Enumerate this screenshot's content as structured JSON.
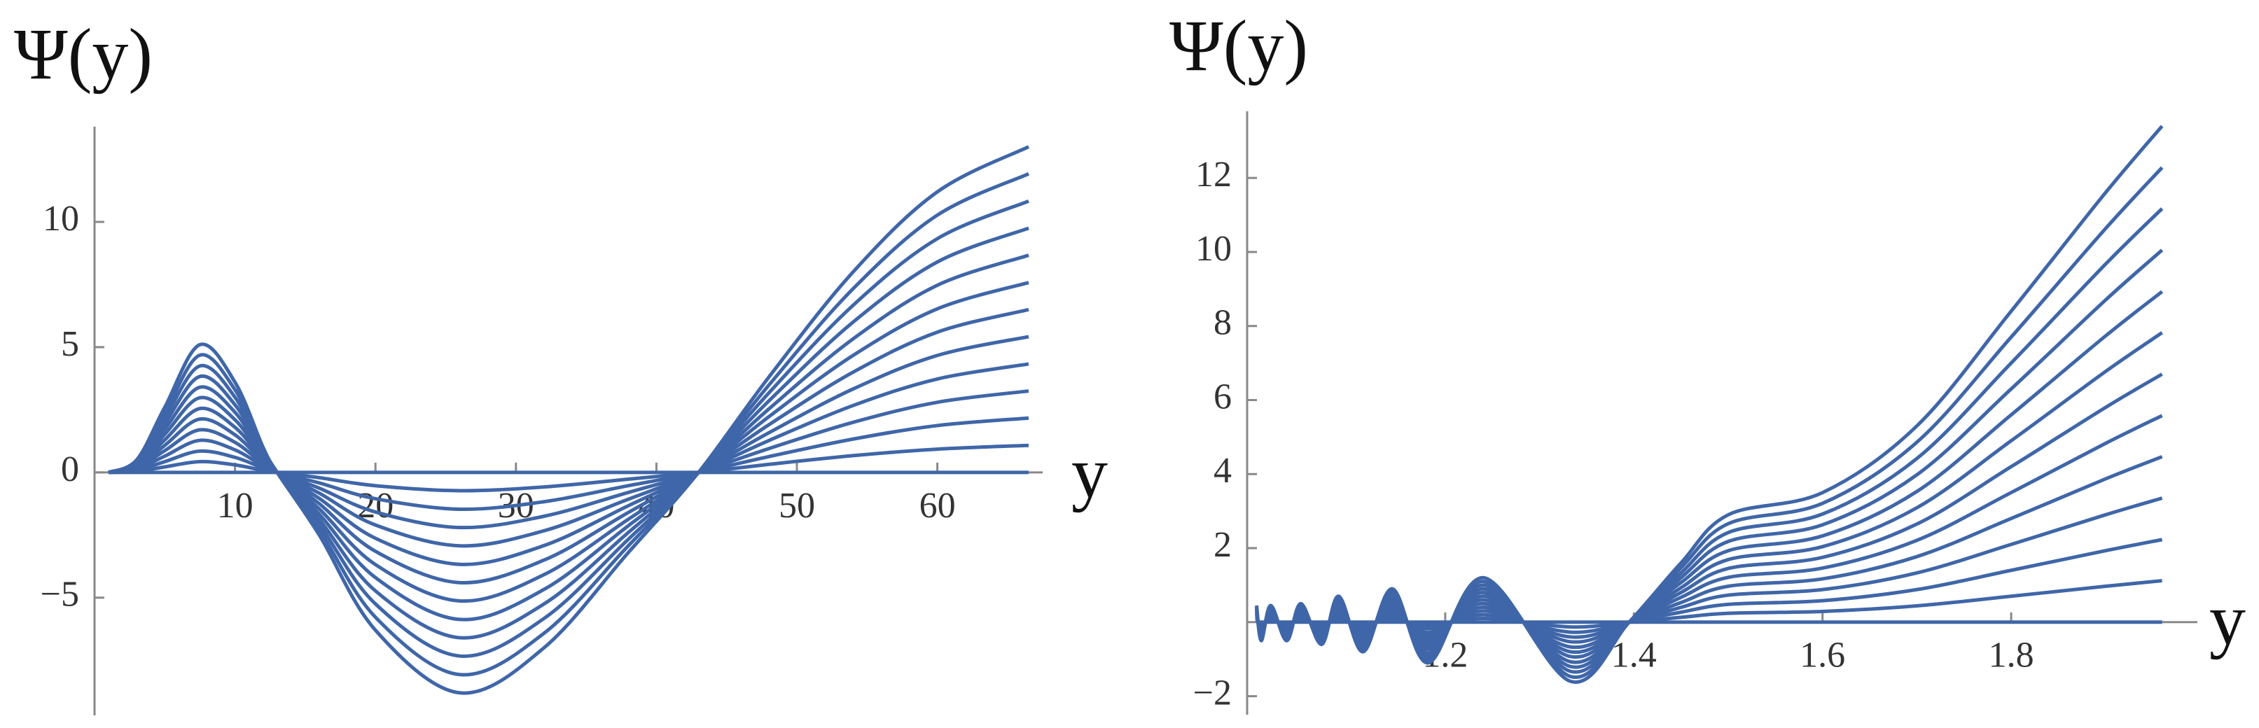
{
  "chart_data": [
    {
      "type": "line",
      "y_label": "Ψ(y)",
      "x_label": "y",
      "color": "#3f66a8",
      "x": [
        1,
        3,
        5,
        7.5,
        10,
        12,
        13,
        16,
        20,
        26,
        32,
        38,
        43,
        48,
        54,
        60,
        66.5
      ],
      "xlim": [
        0,
        67
      ],
      "ylim": [
        -9.7,
        13.8
      ],
      "xticks": [
        10,
        20,
        30,
        40,
        50,
        60
      ],
      "yticks": [
        {
          "value": -5,
          "label": "−5"
        },
        0,
        5,
        10
      ],
      "series": [
        {
          "values": [
            0,
            0,
            0,
            0,
            0,
            0,
            0,
            0,
            0,
            0,
            0,
            0,
            0,
            0,
            0,
            0,
            0
          ]
        },
        {
          "values": [
            0,
            0.04,
            0.22,
            0.43,
            0.3,
            0.08,
            0,
            -0.21,
            -0.53,
            -0.73,
            -0.58,
            -0.27,
            0,
            0.32,
            0.67,
            0.93,
            1.08
          ]
        },
        {
          "values": [
            0,
            0.08,
            0.43,
            0.85,
            0.6,
            0.17,
            0,
            -0.42,
            -1.05,
            -1.47,
            -1.17,
            -0.53,
            0,
            0.63,
            1.33,
            1.87,
            2.17
          ]
        },
        {
          "values": [
            0,
            0.13,
            0.65,
            1.28,
            0.9,
            0.25,
            0,
            -0.63,
            -1.58,
            -2.2,
            -1.75,
            -0.8,
            0,
            0.95,
            2,
            2.8,
            3.25
          ]
        },
        {
          "values": [
            0,
            0.17,
            0.87,
            1.7,
            1.2,
            0.33,
            0,
            -0.83,
            -2.1,
            -2.93,
            -2.33,
            -1.07,
            0,
            1.27,
            2.67,
            3.73,
            4.33
          ]
        },
        {
          "values": [
            0,
            0.21,
            1.08,
            2.13,
            1.5,
            0.42,
            0,
            -1.04,
            -2.63,
            -3.67,
            -2.92,
            -1.33,
            0,
            1.58,
            3.33,
            4.67,
            5.42
          ]
        },
        {
          "values": [
            0,
            0.25,
            1.3,
            2.55,
            1.8,
            0.5,
            0,
            -1.25,
            -3.15,
            -4.4,
            -3.5,
            -1.6,
            0,
            1.9,
            4,
            5.6,
            6.5
          ]
        },
        {
          "values": [
            0,
            0.29,
            1.52,
            2.98,
            2.1,
            0.58,
            0,
            -1.46,
            -3.68,
            -5.13,
            -4.08,
            -1.87,
            0,
            2.22,
            4.67,
            6.53,
            7.58
          ]
        },
        {
          "values": [
            0,
            0.33,
            1.73,
            3.4,
            2.4,
            0.67,
            0,
            -1.67,
            -4.2,
            -5.87,
            -4.67,
            -2.13,
            0,
            2.53,
            5.33,
            7.47,
            8.67
          ]
        },
        {
          "values": [
            0,
            0.38,
            1.95,
            3.83,
            2.7,
            0.75,
            0,
            -1.88,
            -4.73,
            -6.6,
            -5.25,
            -2.4,
            0,
            2.85,
            6,
            8.4,
            9.75
          ]
        },
        {
          "values": [
            0,
            0.42,
            2.17,
            4.25,
            3,
            0.83,
            0,
            -2.08,
            -5.25,
            -7.33,
            -5.83,
            -2.67,
            0,
            3.17,
            6.67,
            9.33,
            10.83
          ]
        },
        {
          "values": [
            0,
            0.46,
            2.38,
            4.68,
            3.3,
            0.92,
            0,
            -2.29,
            -5.78,
            -8.07,
            -6.42,
            -2.93,
            0,
            3.48,
            7.33,
            10.27,
            11.92
          ]
        },
        {
          "values": [
            0,
            0.5,
            2.6,
            5.1,
            3.6,
            1,
            0,
            -2.5,
            -6.3,
            -8.8,
            -7,
            -3.2,
            0,
            3.8,
            8,
            11.2,
            13
          ]
        }
      ]
    },
    {
      "type": "line",
      "y_label": "Ψ(y)",
      "x_label": "y",
      "color": "#3f66a8",
      "x": [
        1,
        1.005,
        1.015,
        1.032,
        1.047,
        1.069,
        1.087,
        1.113,
        1.144,
        1.182,
        1.241,
        1.333,
        1.395,
        1.45,
        1.5,
        1.6,
        1.7,
        1.8,
        1.9,
        1.96
      ],
      "xlim": [
        0.99,
        1.99
      ],
      "ylim": [
        -2.5,
        13.8
      ],
      "xticks": [
        1.2,
        1.4,
        1.6,
        1.8
      ],
      "yticks": [
        {
          "value": -2,
          "label": "−2"
        },
        2,
        4,
        6,
        8,
        10,
        12
      ],
      "series": [
        {
          "values": [
            0,
            0,
            0,
            0,
            0,
            0,
            0,
            0,
            0,
            0,
            0,
            0,
            0,
            0,
            0,
            0,
            0,
            0,
            0,
            0
          ]
        },
        {
          "values": [
            0.04,
            -0.04,
            0.04,
            -0.04,
            0.04,
            -0.05,
            0.06,
            -0.07,
            0.08,
            -0.09,
            0.1,
            -0.13,
            0,
            0.13,
            0.24,
            0.29,
            0.44,
            0.7,
            0.97,
            1.12
          ]
        },
        {
          "values": [
            0.08,
            -0.08,
            0.08,
            -0.08,
            0.08,
            -0.1,
            0.12,
            -0.13,
            0.15,
            -0.18,
            0.2,
            -0.27,
            0,
            0.27,
            0.48,
            0.58,
            0.88,
            1.4,
            1.93,
            2.23
          ]
        },
        {
          "values": [
            0.11,
            -0.13,
            0.11,
            -0.13,
            0.13,
            -0.15,
            0.18,
            -0.2,
            0.23,
            -0.28,
            0.3,
            -0.4,
            0,
            0.4,
            0.73,
            0.88,
            1.33,
            2.1,
            2.9,
            3.35
          ]
        },
        {
          "values": [
            0.15,
            -0.17,
            0.15,
            -0.17,
            0.17,
            -0.2,
            0.23,
            -0.27,
            0.3,
            -0.37,
            0.4,
            -0.53,
            0,
            0.53,
            0.97,
            1.17,
            1.77,
            2.8,
            3.87,
            4.47
          ]
        },
        {
          "values": [
            0.19,
            -0.21,
            0.19,
            -0.21,
            0.21,
            -0.25,
            0.29,
            -0.33,
            0.38,
            -0.46,
            0.5,
            -0.67,
            0,
            0.67,
            1.21,
            1.46,
            2.21,
            3.5,
            4.83,
            5.58
          ]
        },
        {
          "values": [
            0.23,
            -0.25,
            0.23,
            -0.25,
            0.25,
            -0.3,
            0.35,
            -0.4,
            0.45,
            -0.55,
            0.6,
            -0.8,
            0,
            0.8,
            1.45,
            1.75,
            2.65,
            4.2,
            5.8,
            6.7
          ]
        },
        {
          "values": [
            0.26,
            -0.29,
            0.26,
            -0.29,
            0.29,
            -0.35,
            0.41,
            -0.47,
            0.53,
            -0.64,
            0.7,
            -0.93,
            0,
            0.93,
            1.69,
            2.04,
            3.09,
            4.9,
            6.77,
            7.82
          ]
        },
        {
          "values": [
            0.3,
            -0.33,
            0.3,
            -0.33,
            0.33,
            -0.4,
            0.47,
            -0.53,
            0.6,
            -0.73,
            0.8,
            -1.07,
            0,
            1.07,
            1.93,
            2.33,
            3.53,
            5.6,
            7.73,
            8.93
          ]
        },
        {
          "values": [
            0.34,
            -0.38,
            0.34,
            -0.38,
            0.38,
            -0.45,
            0.53,
            -0.6,
            0.68,
            -0.83,
            0.9,
            -1.2,
            0,
            1.2,
            2.18,
            2.63,
            3.98,
            6.3,
            8.7,
            10.05
          ]
        },
        {
          "values": [
            0.38,
            -0.42,
            0.38,
            -0.42,
            0.42,
            -0.5,
            0.58,
            -0.67,
            0.75,
            -0.92,
            1,
            -1.33,
            0,
            1.33,
            2.42,
            2.92,
            4.42,
            7,
            9.67,
            11.17
          ]
        },
        {
          "values": [
            0.41,
            -0.46,
            0.41,
            -0.46,
            0.46,
            -0.55,
            0.64,
            -0.73,
            0.83,
            -1.01,
            1.1,
            -1.47,
            0,
            1.47,
            2.66,
            3.21,
            4.86,
            7.7,
            10.63,
            12.28
          ]
        },
        {
          "values": [
            0.45,
            -0.5,
            0.45,
            -0.5,
            0.5,
            -0.6,
            0.7,
            -0.8,
            0.9,
            -1.1,
            1.2,
            -1.6,
            0,
            1.6,
            2.9,
            3.5,
            5.3,
            8.4,
            11.6,
            13.4
          ]
        }
      ]
    }
  ]
}
